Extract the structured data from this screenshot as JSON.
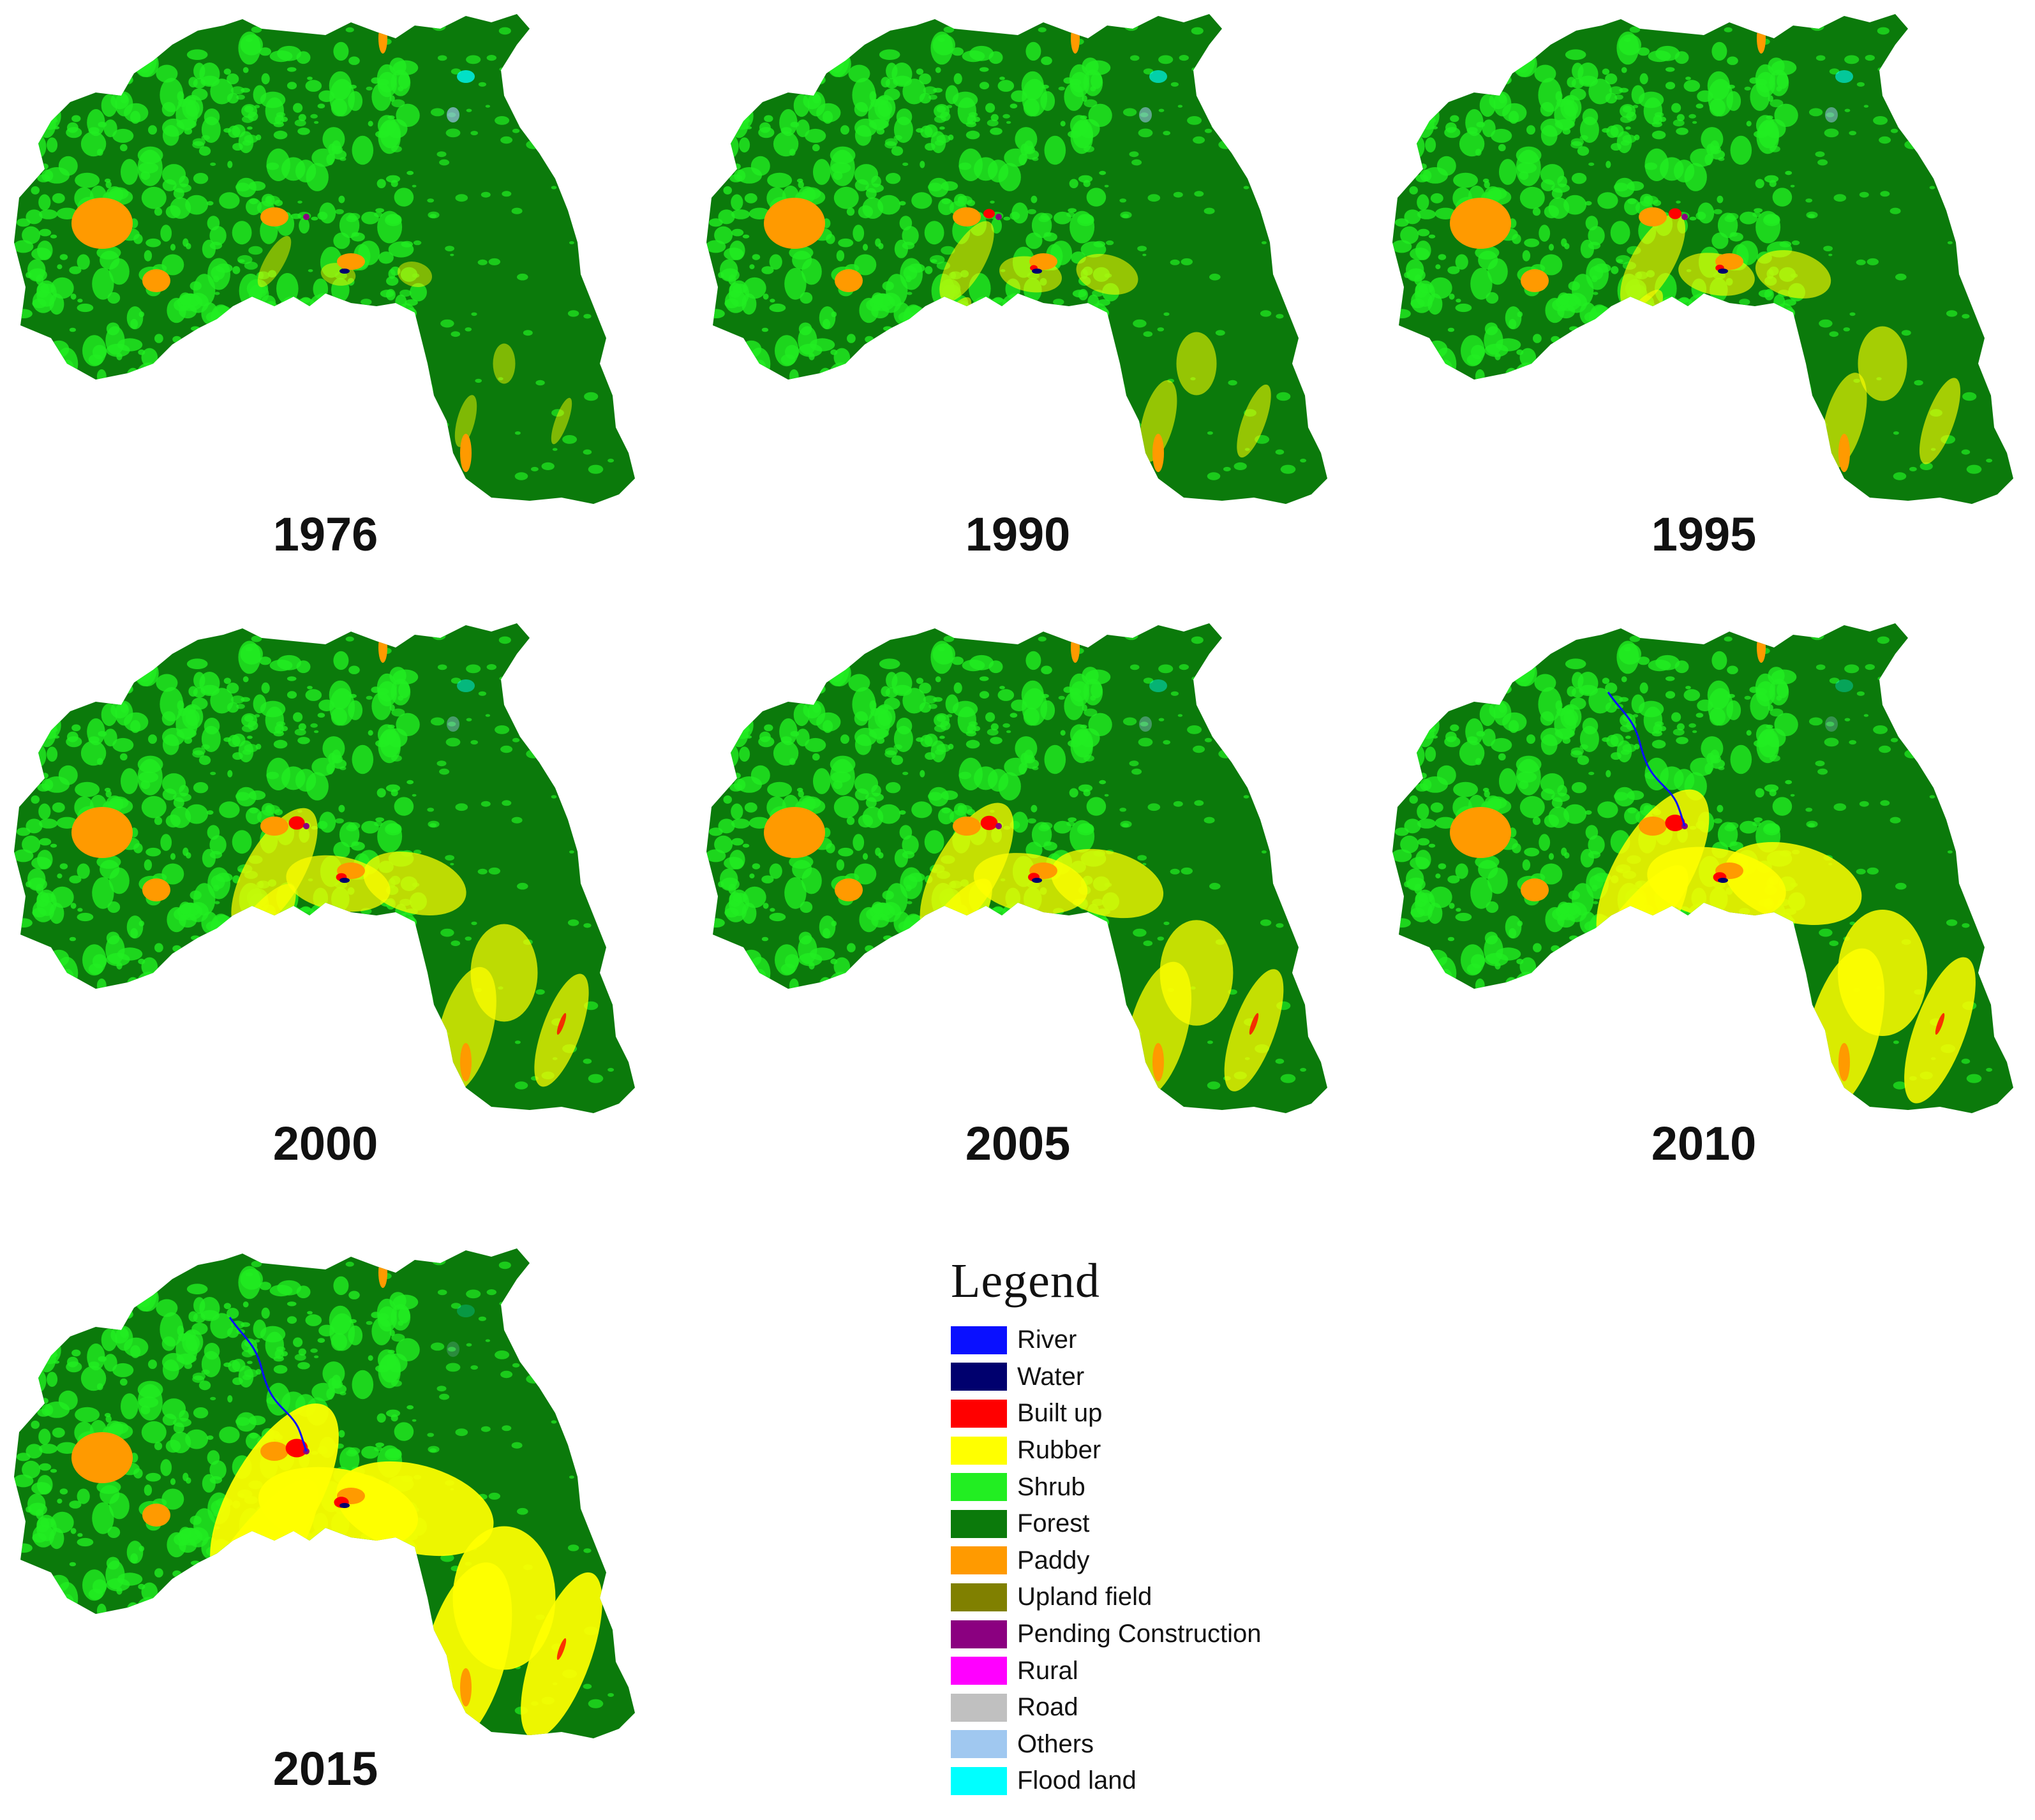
{
  "panels": [
    {
      "year": "1976",
      "development": 0.05
    },
    {
      "year": "1990",
      "development": 0.25
    },
    {
      "year": "1995",
      "development": 0.35
    },
    {
      "year": "2000",
      "development": 0.55
    },
    {
      "year": "2005",
      "development": 0.62
    },
    {
      "year": "2010",
      "development": 0.8
    },
    {
      "year": "2015",
      "development": 0.95
    }
  ],
  "legend": {
    "title": "Legend",
    "items": [
      {
        "label": "River",
        "color": "#0a10ff",
        "key": "river"
      },
      {
        "label": "Water",
        "color": "#00006e",
        "key": "water"
      },
      {
        "label": "Built up",
        "color": "#ff0000",
        "key": "built-up"
      },
      {
        "label": "Rubber",
        "color": "#ffff00",
        "key": "rubber"
      },
      {
        "label": "Shrub",
        "color": "#22ee22",
        "key": "shrub"
      },
      {
        "label": "Forest",
        "color": "#0b7a0b",
        "key": "forest"
      },
      {
        "label": "Paddy",
        "color": "#ff9a00",
        "key": "paddy"
      },
      {
        "label": "Upland field",
        "color": "#808000",
        "key": "upland-field"
      },
      {
        "label": "Pending Construction",
        "color": "#8b0080",
        "key": "pending-construction"
      },
      {
        "label": "Rural",
        "color": "#ff00ff",
        "key": "rural"
      },
      {
        "label": "Road",
        "color": "#c0c0c0",
        "key": "road"
      },
      {
        "label": "Others",
        "color": "#a0c8f0",
        "key": "others"
      },
      {
        "label": "Flood land",
        "color": "#00ffff",
        "key": "flood-land"
      }
    ]
  }
}
